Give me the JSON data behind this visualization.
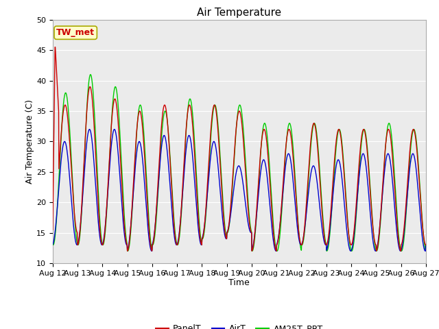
{
  "title": "Air Temperature",
  "xlabel": "Time",
  "ylabel": "Air Temperature (C)",
  "ylim": [
    10,
    50
  ],
  "x_tick_labels": [
    "Aug 12",
    "Aug 13",
    "Aug 14",
    "Aug 15",
    "Aug 16",
    "Aug 17",
    "Aug 18",
    "Aug 19",
    "Aug 20",
    "Aug 21",
    "Aug 22",
    "Aug 23",
    "Aug 24",
    "Aug 25",
    "Aug 26",
    "Aug 27"
  ],
  "annotation_text": "TW_met",
  "annotation_box_facecolor": "#FFFFCC",
  "annotation_box_edgecolor": "#AAAA00",
  "annotation_text_color": "#CC0000",
  "panel_color": "#CC0000",
  "air_color": "#0000CC",
  "am25t_color": "#00CC00",
  "bg_color": "#EBEBEB",
  "grid_color": "#FFFFFF",
  "title_fontsize": 11,
  "axis_label_fontsize": 9,
  "tick_fontsize": 8,
  "legend_fontsize": 9,
  "panel_max": [
    36,
    39,
    37,
    35,
    36,
    36,
    36,
    35,
    32,
    32,
    33,
    32,
    32,
    32,
    32,
    32
  ],
  "panel_min": [
    15,
    13,
    13,
    12,
    13,
    13,
    14,
    15,
    12,
    13,
    13,
    13,
    13,
    12,
    13,
    13
  ],
  "air_max": [
    30,
    32,
    32,
    30,
    31,
    31,
    30,
    26,
    27,
    28,
    26,
    27,
    28,
    28,
    28,
    27
  ],
  "air_min": [
    13,
    13,
    13,
    12,
    13,
    13,
    14,
    15,
    12,
    13,
    13,
    12,
    12,
    12,
    12,
    13
  ],
  "am25t_max": [
    38,
    41,
    39,
    36,
    35,
    37,
    36,
    36,
    33,
    33,
    33,
    32,
    32,
    33,
    32,
    32
  ],
  "am25t_min": [
    13,
    13,
    13,
    12,
    13,
    13,
    14,
    15,
    12,
    12,
    13,
    12,
    12,
    12,
    12,
    13
  ]
}
